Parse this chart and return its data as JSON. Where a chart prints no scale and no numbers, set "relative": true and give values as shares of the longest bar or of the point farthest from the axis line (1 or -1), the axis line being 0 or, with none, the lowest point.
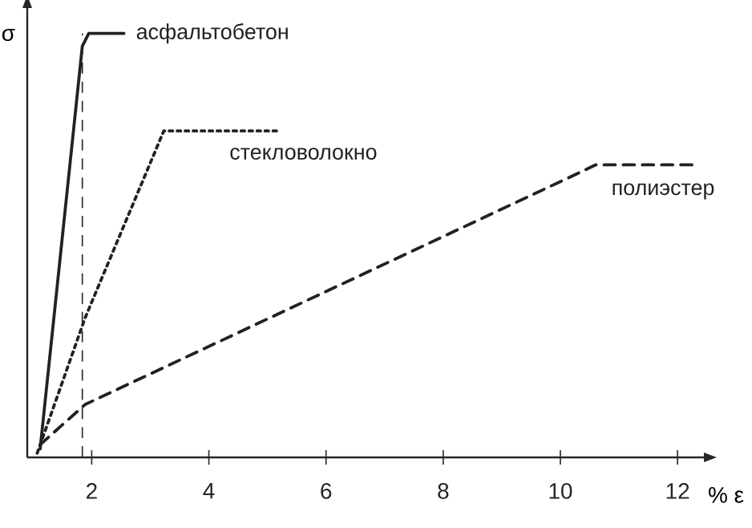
{
  "chart_data": {
    "type": "line",
    "xlabel": "% ε",
    "ylabel": "σ",
    "relative": true,
    "xlim": [
      0.9,
      12.45
    ],
    "xticks": [
      2,
      4,
      6,
      8,
      10,
      12
    ],
    "tick_labels": "x",
    "marker": "none",
    "ref_lines": [
      {
        "axis": "x",
        "value": 1.84,
        "line_style": "dashed",
        "color": "#222222"
      }
    ],
    "series": [
      {
        "name": "асфальтобетон",
        "color": "#222222",
        "line_style": "solid",
        "x": [
          1.12,
          1.84,
          1.95,
          2.11,
          2.55
        ],
        "values": [
          0.02,
          0.97,
          1.0,
          1.0,
          1.0
        ]
      },
      {
        "name": "стекловолокно",
        "color": "#222222",
        "line_style": "dotted",
        "x": [
          1.07,
          1.89,
          3.23,
          5.23
        ],
        "values": [
          0.01,
          0.33,
          0.77,
          0.77
        ]
      },
      {
        "name": "полиэстер",
        "color": "#222222",
        "line_style": "dashed",
        "x": [
          1.12,
          1.89,
          10.3,
          10.6,
          12.3
        ],
        "values": [
          0.03,
          0.125,
          0.67,
          0.69,
          0.69
        ]
      }
    ]
  }
}
